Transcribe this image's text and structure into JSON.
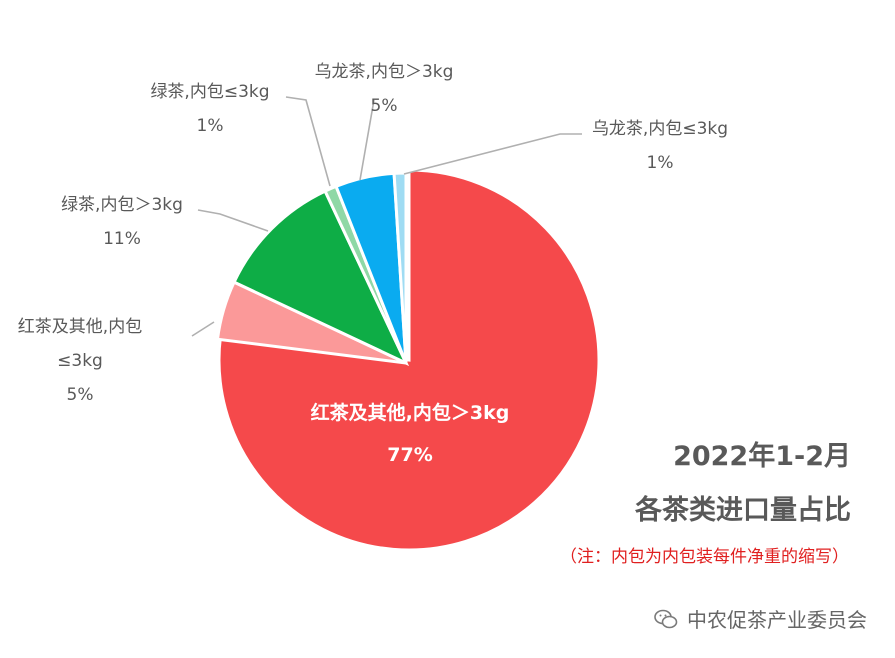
{
  "chart_data": {
    "type": "pie",
    "slices": [
      {
        "name": "红茶及其他,内包＞3kg",
        "value": 77,
        "pct": "77%",
        "color": "#f5494b"
      },
      {
        "name": "红茶及其他,内包≤3kg",
        "name_lines": [
          "红茶及其他,内包",
          "≤3kg"
        ],
        "value": 5,
        "pct": "5%",
        "color": "#fb9999"
      },
      {
        "name": "绿茶,内包＞3kg",
        "value": 11,
        "pct": "11%",
        "color": "#0ead46"
      },
      {
        "name": "绿茶,内包≤3kg",
        "value": 1,
        "pct": "1%",
        "color": "#8fd8a6"
      },
      {
        "name": "乌龙茶,内包＞3kg",
        "value": 5,
        "pct": "5%",
        "color": "#0aabf0"
      },
      {
        "name": "乌龙茶,内包≤3kg",
        "value": 1,
        "pct": "1%",
        "color": "#9fdcf3"
      }
    ]
  },
  "titles": {
    "period": "2022年1-2月",
    "subtitle": "各茶类进口量占比",
    "note": "（注：内包为内包装每件净重的缩写）"
  },
  "watermark": {
    "icon": "wechat-icon",
    "text": "中农促茶产业委员会"
  }
}
